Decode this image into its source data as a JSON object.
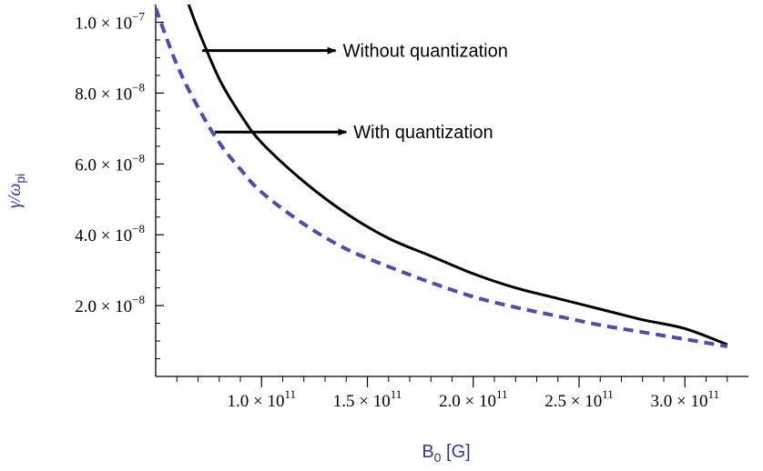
{
  "chart_data": {
    "type": "line",
    "title": "",
    "xlabel": "B",
    "xlabel_sub": "0",
    "xlabel_unit": " [G]",
    "ylabel": "γ/ω",
    "ylabel_sub": "pi",
    "label_color": "#2e3a8c",
    "xlim": [
      50000000000.0,
      330000000000.0
    ],
    "ylim": [
      0,
      1.05e-07
    ],
    "x_ticks": [
      {
        "value": 100000000000.0,
        "mant": "1.0",
        "exp": "11"
      },
      {
        "value": 150000000000.0,
        "mant": "1.5",
        "exp": "11"
      },
      {
        "value": 200000000000.0,
        "mant": "2.0",
        "exp": "11"
      },
      {
        "value": 250000000000.0,
        "mant": "2.5",
        "exp": "11"
      },
      {
        "value": 300000000000.0,
        "mant": "3.0",
        "exp": "11"
      }
    ],
    "y_ticks": [
      {
        "value": 2e-08,
        "mant": "2.0",
        "exp": "−8"
      },
      {
        "value": 4e-08,
        "mant": "4.0",
        "exp": "−8"
      },
      {
        "value": 6e-08,
        "mant": "6.0",
        "exp": "−8"
      },
      {
        "value": 8e-08,
        "mant": "8.0",
        "exp": "−8"
      },
      {
        "value": 1e-07,
        "mant": "1.0",
        "exp": "−7"
      }
    ],
    "times": "×",
    "series": [
      {
        "key": "without",
        "color": "#000000",
        "dash": "solid",
        "x": [
          65000000000.0,
          70000000000.0,
          80000000000.0,
          90000000000.0,
          100000000000.0,
          120000000000.0,
          140000000000.0,
          160000000000.0,
          180000000000.0,
          200000000000.0,
          220000000000.0,
          240000000000.0,
          260000000000.0,
          280000000000.0,
          300000000000.0,
          320000000000.0
        ],
        "y": [
          1.06e-07,
          9.8e-08,
          8.4e-08,
          7.4e-08,
          6.6e-08,
          5.5e-08,
          4.6e-08,
          3.9e-08,
          3.4e-08,
          2.9e-08,
          2.5e-08,
          2.2e-08,
          1.9e-08,
          1.6e-08,
          1.35e-08,
          9e-09
        ]
      },
      {
        "key": "with",
        "color": "#4b4faa",
        "dash": "dashed",
        "x": [
          50000000000.0,
          60000000000.0,
          70000000000.0,
          80000000000.0,
          90000000000.0,
          100000000000.0,
          120000000000.0,
          140000000000.0,
          160000000000.0,
          180000000000.0,
          200000000000.0,
          220000000000.0,
          240000000000.0,
          260000000000.0,
          280000000000.0,
          300000000000.0,
          320000000000.0
        ],
        "y": [
          1.04e-07,
          8.8e-08,
          7.6e-08,
          6.6e-08,
          5.85e-08,
          5.2e-08,
          4.3e-08,
          3.6e-08,
          3.1e-08,
          2.65e-08,
          2.25e-08,
          1.95e-08,
          1.7e-08,
          1.45e-08,
          1.25e-08,
          1.05e-08,
          8.5e-09
        ]
      }
    ],
    "annotations": [
      {
        "key": "without",
        "text": "Without quantization",
        "arrow_from": [
          72000000000.0,
          9.2e-08
        ],
        "arrow_to": [
          135000000000.0,
          9.2e-08
        ]
      },
      {
        "key": "with",
        "text": "With quantization",
        "arrow_from": [
          78000000000.0,
          6.9e-08
        ],
        "arrow_to": [
          140000000000.0,
          6.9e-08
        ]
      }
    ]
  }
}
